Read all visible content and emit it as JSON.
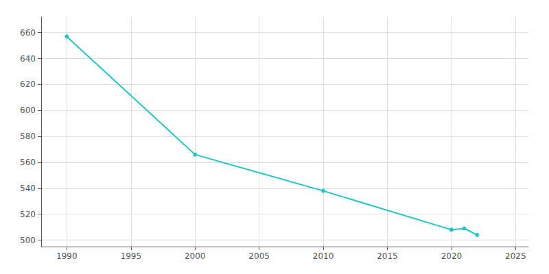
{
  "chart_data": {
    "type": "line",
    "x": [
      1990,
      2000,
      2010,
      2020,
      2021,
      2022
    ],
    "values": [
      657,
      566,
      538,
      508,
      509,
      504
    ],
    "color": "#22c5c5",
    "marker": "circle",
    "xlim": [
      1988,
      2026
    ],
    "ylim": [
      495,
      672
    ],
    "xticks": [
      1990,
      1995,
      2000,
      2005,
      2010,
      2015,
      2020,
      2025
    ],
    "yticks": [
      500,
      520,
      540,
      560,
      580,
      600,
      620,
      640,
      660
    ],
    "grid": true
  }
}
